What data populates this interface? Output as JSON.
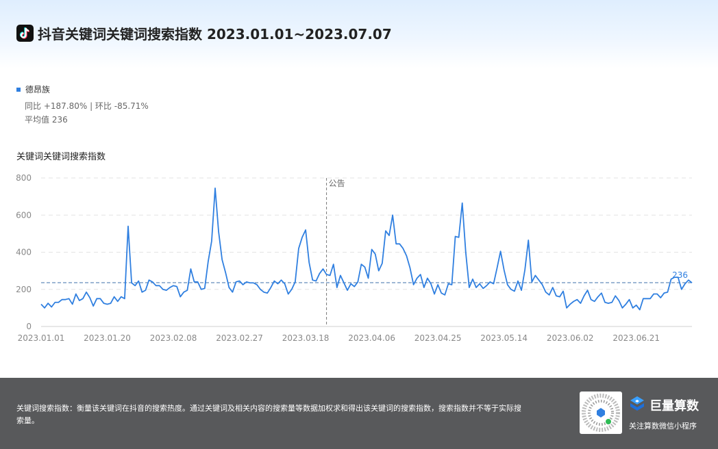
{
  "header": {
    "title": "抖音关键词关键词搜索指数 2023.01.01~2023.07.07",
    "logo_icon": "douyin-logo-icon"
  },
  "legend": {
    "series_name": "德昂族",
    "color": "#2f7fe0"
  },
  "stats": {
    "compare": "同比 +187.80% | 环比 -85.71%",
    "average": "平均值 236"
  },
  "chart_title": "关键词关键词搜索指数",
  "chart_data": {
    "type": "line",
    "title": "关键词关键词搜索指数",
    "ylim": [
      0,
      800
    ],
    "yticks": [
      0,
      200,
      400,
      600,
      800
    ],
    "ytick_labels": [
      "0",
      "200",
      "400",
      "600",
      "800"
    ],
    "xtick_labels": [
      "2023.01.01",
      "2023.01.20",
      "2023.02.08",
      "2023.02.27",
      "2023.03.18",
      "2023.04.06",
      "2023.04.25",
      "2023.05.14",
      "2023.06.02",
      "2023.06.21"
    ],
    "xtick_index": [
      0,
      19,
      38,
      57,
      76,
      95,
      114,
      133,
      152,
      171
    ],
    "grid": true,
    "average_line": {
      "value": 236,
      "label": "236"
    },
    "annotation": {
      "index": 82,
      "label": "公告"
    },
    "series": [
      {
        "name": "德昂族",
        "color": "#2f7fe0",
        "values": [
          120,
          100,
          125,
          105,
          130,
          130,
          145,
          145,
          150,
          120,
          175,
          140,
          150,
          185,
          155,
          110,
          150,
          150,
          125,
          120,
          125,
          160,
          135,
          160,
          150,
          540,
          235,
          220,
          245,
          185,
          195,
          250,
          240,
          220,
          220,
          200,
          195,
          210,
          220,
          215,
          160,
          185,
          195,
          310,
          240,
          240,
          200,
          205,
          350,
          460,
          745,
          510,
          360,
          290,
          210,
          185,
          240,
          245,
          225,
          240,
          235,
          235,
          225,
          200,
          185,
          180,
          210,
          245,
          230,
          250,
          230,
          175,
          200,
          240,
          420,
          480,
          520,
          345,
          250,
          245,
          285,
          310,
          280,
          275,
          335,
          210,
          275,
          235,
          195,
          230,
          215,
          240,
          335,
          320,
          260,
          415,
          390,
          300,
          340,
          515,
          490,
          600,
          445,
          445,
          420,
          380,
          315,
          225,
          260,
          280,
          210,
          260,
          230,
          175,
          225,
          180,
          170,
          230,
          225,
          485,
          480,
          665,
          400,
          210,
          255,
          210,
          230,
          205,
          220,
          240,
          230,
          315,
          405,
          305,
          225,
          200,
          190,
          245,
          195,
          305,
          465,
          240,
          275,
          250,
          225,
          185,
          170,
          210,
          165,
          160,
          190,
          100,
          120,
          135,
          145,
          125,
          165,
          195,
          145,
          135,
          160,
          180,
          130,
          125,
          130,
          165,
          140,
          100,
          120,
          145,
          100,
          115,
          90,
          150,
          150,
          150,
          175,
          175,
          155,
          180,
          185,
          255,
          265,
          265,
          200,
          230,
          250,
          235
        ]
      }
    ]
  },
  "footer": {
    "description": "关键词搜索指数：衡量该关键词在抖音的搜索热度。通过关键词及相关内容的搜索量等数据加权求和得出该关键词的搜索指数，搜索指数并不等于实际搜索量。",
    "brand_name": "巨量算数",
    "brand_sub": "关注算数微信小程序",
    "qr_icon": "qr-code-icon",
    "brand_icon": "juliang-logo-icon"
  }
}
